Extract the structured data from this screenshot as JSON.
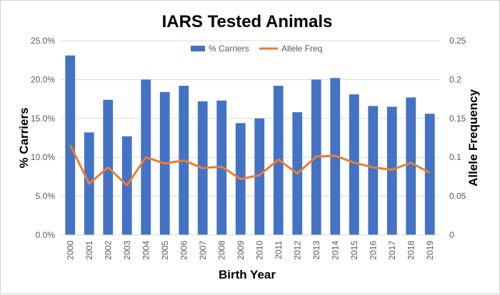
{
  "chart_data": {
    "type": "bar",
    "title": "IARS Tested Animals",
    "xlabel": "Birth Year",
    "ylabel": "% Carriers",
    "y2label": "Allele Frequency",
    "categories": [
      "2000",
      "2001",
      "2002",
      "2003",
      "2004",
      "2005",
      "2006",
      "2007",
      "2008",
      "2009",
      "2010",
      "2011",
      "2012",
      "2013",
      "2014",
      "2015",
      "2016",
      "2017",
      "2018",
      "2019"
    ],
    "series": [
      {
        "name": "% Carriers",
        "type": "bar",
        "axis": "left",
        "color": "#4472c4",
        "values": [
          23.1,
          13.2,
          17.4,
          12.7,
          20.0,
          18.4,
          19.2,
          17.2,
          17.3,
          14.4,
          15.0,
          19.2,
          15.8,
          20.0,
          20.2,
          18.1,
          16.6,
          16.5,
          17.7,
          15.6
        ]
      },
      {
        "name": "Allele Freq",
        "type": "line",
        "axis": "right",
        "color": "#ed7d31",
        "values": [
          0.116,
          0.066,
          0.087,
          0.064,
          0.1,
          0.092,
          0.096,
          0.086,
          0.088,
          0.072,
          0.077,
          0.097,
          0.079,
          0.101,
          0.102,
          0.093,
          0.087,
          0.084,
          0.093,
          0.08
        ]
      }
    ],
    "ylim": [
      0,
      25
    ],
    "y_ticks": [
      "0.0%",
      "5.0%",
      "10.0%",
      "15.0%",
      "20.0%",
      "25.0%"
    ],
    "y2lim": [
      0,
      0.25
    ],
    "y2_ticks": [
      "0",
      "0.05",
      "0.1",
      "0.15",
      "0.2",
      "0.25"
    ],
    "grid": true,
    "legend_position": "top-center"
  }
}
